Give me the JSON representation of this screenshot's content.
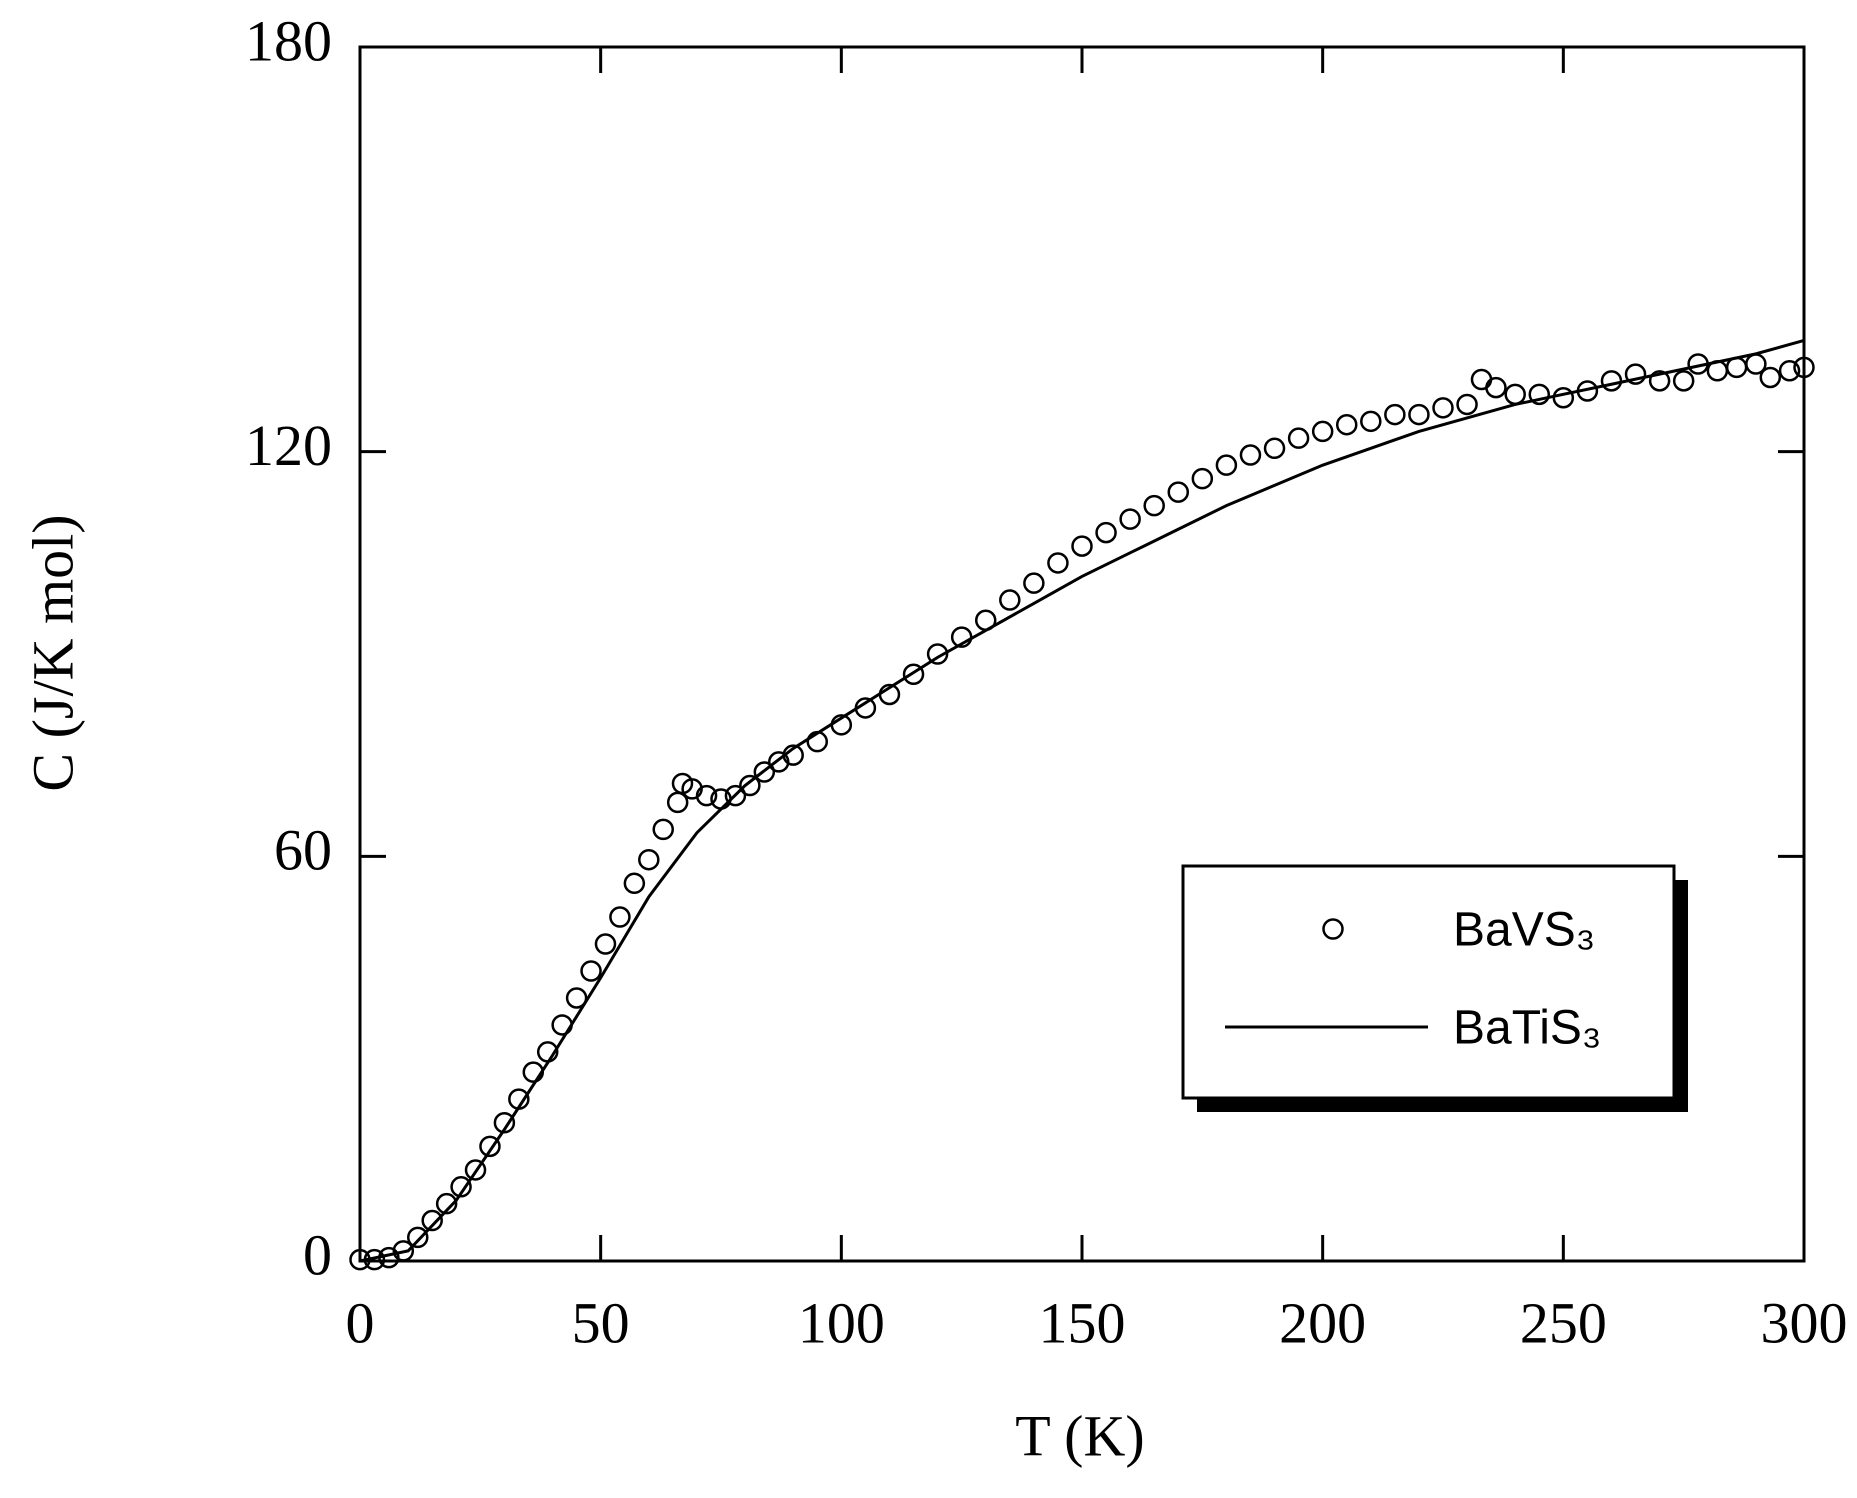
{
  "chart_data": {
    "type": "line",
    "xlabel": "T (K)",
    "ylabel": "C (J/K mol)",
    "xlim": [
      0,
      300
    ],
    "ylim": [
      0,
      180
    ],
    "xticks": [
      0,
      50,
      100,
      150,
      200,
      250,
      300
    ],
    "yticks": [
      0,
      60,
      120,
      180
    ],
    "legend": "lower right",
    "series": [
      {
        "name": "BaVS₃",
        "color": "#000000",
        "marker": "circle",
        "x": [
          0,
          3,
          6,
          9,
          12,
          15,
          18,
          21,
          24,
          27,
          30,
          33,
          36,
          39,
          42,
          45,
          48,
          51,
          54,
          57,
          60,
          63,
          66,
          67,
          69,
          72,
          75,
          78,
          81,
          84,
          87,
          90,
          95,
          100,
          105,
          110,
          115,
          120,
          125,
          130,
          135,
          140,
          145,
          150,
          155,
          160,
          165,
          170,
          175,
          180,
          185,
          190,
          195,
          200,
          205,
          210,
          215,
          220,
          225,
          230,
          233,
          236,
          240,
          245,
          250,
          255,
          260,
          265,
          270,
          275,
          278,
          282,
          286,
          290,
          293,
          297,
          300
        ],
        "values": [
          0.2,
          0.2,
          0.5,
          1.5,
          3.5,
          6,
          8.5,
          11,
          13.5,
          17,
          20.5,
          24,
          28,
          31,
          35,
          39,
          43,
          47,
          51,
          56,
          59.5,
          64,
          68,
          70.8,
          70,
          69,
          68.5,
          69,
          70.5,
          72.5,
          74,
          75,
          77,
          79.5,
          82,
          84,
          87,
          90,
          92.5,
          95,
          98,
          100.5,
          103.5,
          106,
          108,
          110,
          112,
          114,
          116,
          118,
          119.5,
          120.5,
          122,
          123,
          124,
          124.5,
          125.5,
          125.5,
          126.5,
          127,
          130.7,
          129.5,
          128.5,
          128.5,
          128,
          129,
          130.5,
          131.5,
          130.5,
          130.5,
          133,
          132,
          132.5,
          133,
          131,
          132,
          132.5
        ]
      },
      {
        "name": "BaTiS₃",
        "color": "#000000",
        "marker": "none",
        "x": [
          0,
          10,
          20,
          30,
          40,
          50,
          60,
          70,
          80,
          90,
          100,
          110,
          120,
          130,
          140,
          150,
          160,
          170,
          180,
          190,
          200,
          210,
          220,
          230,
          240,
          250,
          260,
          270,
          280,
          290,
          300
        ],
        "values": [
          0,
          1.5,
          9,
          19.5,
          30.5,
          42,
          54,
          63.5,
          70.5,
          76,
          80.5,
          85,
          89.5,
          93.5,
          97.5,
          101.5,
          105,
          108.5,
          112,
          115,
          118,
          120.5,
          123,
          125,
          127,
          128.5,
          130,
          131.5,
          133,
          134.5,
          136.5
        ]
      }
    ]
  }
}
